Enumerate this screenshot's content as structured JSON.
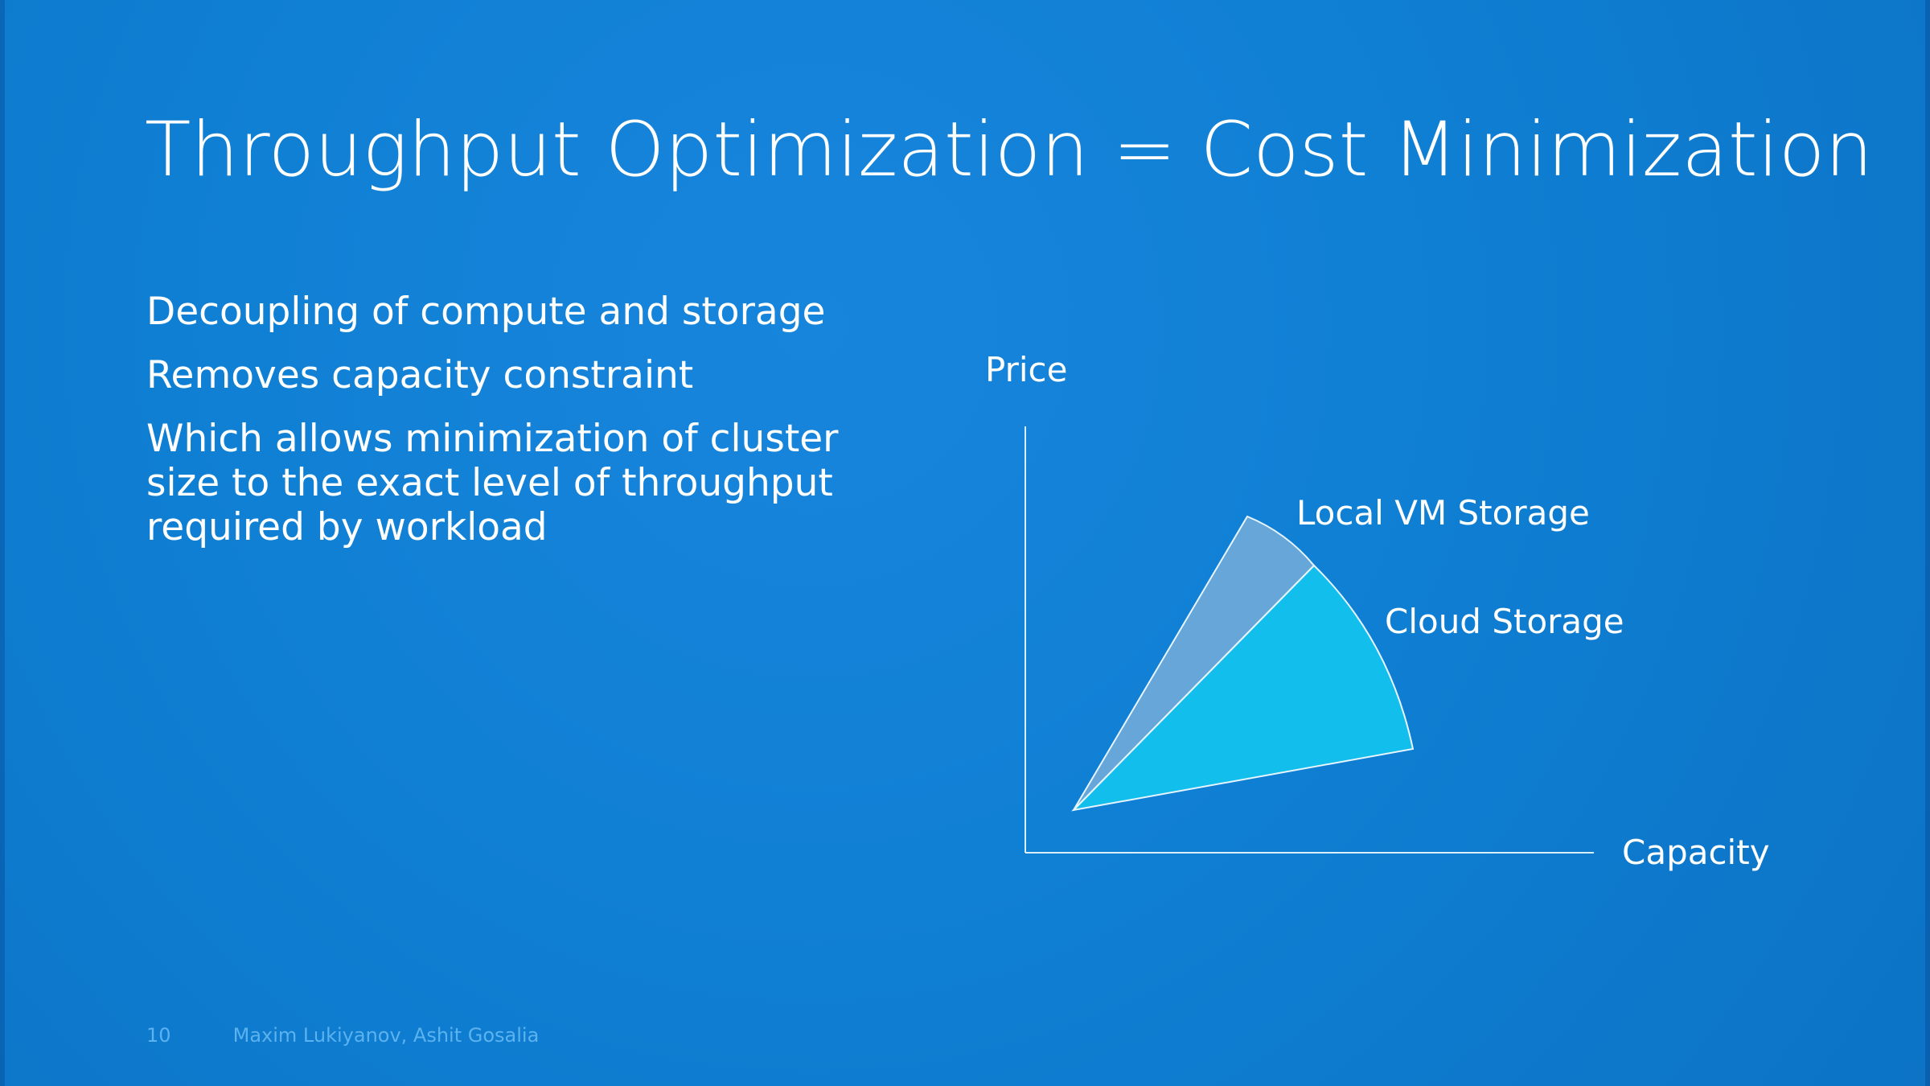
{
  "slide": {
    "title": "Throughput Optimization = Cost Minimization",
    "bullets": [
      "Decoupling of compute and storage",
      "Removes capacity constraint",
      "Which allows minimization of cluster size to the exact level of throughput required by workload"
    ],
    "footer": {
      "page_number": "10",
      "authors": "Maxim Lukiyanov, Ashit Gosalia"
    }
  },
  "diagram": {
    "labels": {
      "price": "Price",
      "capacity": "Capacity",
      "local_vm_storage": "Local VM Storage",
      "cloud_storage": "Cloud Storage"
    },
    "colors": {
      "background": "#0f7fd3",
      "local_vm_storage": "#68a6d8",
      "cloud_storage": "#12bfec",
      "axis": "#d9eefb"
    }
  }
}
